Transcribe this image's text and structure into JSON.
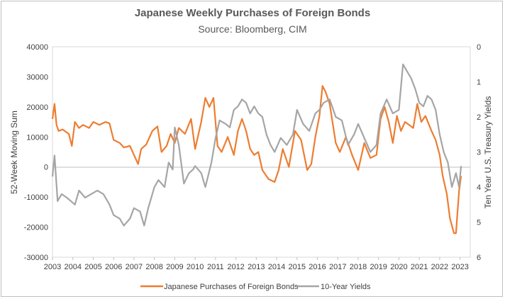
{
  "chart_data": {
    "type": "line",
    "title": "Japanese Weekly Purchases of Foreign Bonds",
    "subtitle": "Source: Bloomberg, CIM",
    "ylabel_left": "52-Week Moving Sum",
    "ylabel_right": "Ten Year U.S. Treasury Yields",
    "ylim_left": [
      -30000,
      40000
    ],
    "ylim_right": [
      6,
      0
    ],
    "right_axis_inverted": true,
    "xlim": [
      2003,
      2023.5
    ],
    "y_ticks_left": [
      "40000",
      "30000",
      "20000",
      "10000",
      "0",
      "-10000",
      "-20000",
      "-30000"
    ],
    "y_ticks_right": [
      "0",
      "1",
      "2",
      "3",
      "4",
      "5",
      "6"
    ],
    "x_ticks": [
      "2003",
      "2004",
      "2005",
      "2006",
      "2007",
      "2008",
      "2009",
      "2010",
      "2011",
      "2012",
      "2013",
      "2014",
      "2015",
      "2016",
      "2017",
      "2018",
      "2019",
      "2020",
      "2021",
      "2022",
      "2023"
    ],
    "grid": false,
    "legend_position": "bottom",
    "series": [
      {
        "name": "Japanese Purchases of Foreign Bonds",
        "axis": "left",
        "color": "#ED7D31",
        "x": [
          2003.0,
          2003.1,
          2003.2,
          2003.3,
          2003.5,
          2003.8,
          2003.95,
          2004.1,
          2004.3,
          2004.5,
          2004.8,
          2005.0,
          2005.3,
          2005.6,
          2005.8,
          2006.0,
          2006.3,
          2006.5,
          2006.8,
          2007.0,
          2007.2,
          2007.35,
          2007.6,
          2007.9,
          2008.15,
          2008.35,
          2008.6,
          2008.8,
          2009.0,
          2009.2,
          2009.5,
          2009.8,
          2010.0,
          2010.3,
          2010.5,
          2010.7,
          2010.9,
          2011.1,
          2011.3,
          2011.6,
          2011.9,
          2012.1,
          2012.3,
          2012.5,
          2012.7,
          2012.9,
          2013.1,
          2013.3,
          2013.6,
          2013.9,
          2014.1,
          2014.3,
          2014.6,
          2014.9,
          2015.2,
          2015.5,
          2015.7,
          2015.9,
          2016.1,
          2016.25,
          2016.4,
          2016.6,
          2016.9,
          2017.1,
          2017.4,
          2017.7,
          2018.0,
          2018.3,
          2018.6,
          2018.9,
          2019.1,
          2019.3,
          2019.5,
          2019.7,
          2019.9,
          2020.1,
          2020.3,
          2020.5,
          2020.7,
          2020.9,
          2021.1,
          2021.3,
          2021.6,
          2021.8,
          2022.0,
          2022.15,
          2022.35,
          2022.5,
          2022.7,
          2022.8,
          2022.95,
          2023.05
        ],
        "values": [
          16000,
          21000,
          14000,
          12000,
          12500,
          11000,
          7000,
          15000,
          13000,
          14000,
          13000,
          15000,
          14000,
          15000,
          14500,
          9000,
          8000,
          6500,
          7000,
          4000,
          1000,
          6000,
          7500,
          12000,
          13500,
          5000,
          7000,
          11000,
          8000,
          13000,
          11000,
          16000,
          6000,
          15000,
          23000,
          20000,
          23000,
          7000,
          5000,
          10000,
          4000,
          12000,
          16000,
          12000,
          6000,
          4000,
          5000,
          -1000,
          -4000,
          -5000,
          -1000,
          6000,
          0,
          12000,
          9000,
          -1000,
          1000,
          10000,
          17000,
          27000,
          25000,
          21000,
          8000,
          5000,
          10000,
          4000,
          -1000,
          8000,
          3000,
          4000,
          16000,
          20000,
          15000,
          8000,
          17000,
          12000,
          15000,
          14000,
          13000,
          21000,
          15000,
          17000,
          12000,
          9000,
          4000,
          -3000,
          -9000,
          -17000,
          -22000,
          -22000,
          -8000,
          -3000
        ]
      },
      {
        "name": "10-Year Yields",
        "axis": "right",
        "color": "#A5A5A5",
        "x": [
          2003.0,
          2003.1,
          2003.25,
          2003.45,
          2003.7,
          2003.9,
          2004.1,
          2004.3,
          2004.6,
          2004.9,
          2005.2,
          2005.5,
          2005.8,
          2006.0,
          2006.3,
          2006.5,
          2006.8,
          2007.0,
          2007.3,
          2007.5,
          2007.7,
          2008.0,
          2008.2,
          2008.5,
          2008.7,
          2008.9,
          2009.0,
          2009.2,
          2009.45,
          2009.7,
          2009.9,
          2010.0,
          2010.3,
          2010.5,
          2010.8,
          2011.0,
          2011.2,
          2011.5,
          2011.7,
          2011.9,
          2012.1,
          2012.3,
          2012.5,
          2012.7,
          2012.9,
          2013.1,
          2013.3,
          2013.5,
          2013.7,
          2013.9,
          2014.2,
          2014.5,
          2014.8,
          2015.0,
          2015.3,
          2015.6,
          2015.9,
          2016.1,
          2016.3,
          2016.6,
          2016.9,
          2017.2,
          2017.5,
          2017.8,
          2018.0,
          2018.3,
          2018.6,
          2018.9,
          2019.1,
          2019.4,
          2019.7,
          2020.0,
          2020.2,
          2020.4,
          2020.6,
          2020.8,
          2021.0,
          2021.2,
          2021.4,
          2021.6,
          2021.8,
          2022.0,
          2022.2,
          2022.4,
          2022.6,
          2022.8,
          2022.95,
          2023.05
        ],
        "values": [
          3.7,
          3.1,
          4.4,
          4.2,
          4.3,
          4.4,
          4.5,
          4.1,
          4.3,
          4.2,
          4.1,
          4.2,
          4.5,
          4.8,
          4.9,
          5.1,
          4.9,
          4.6,
          4.7,
          5.1,
          4.6,
          4.0,
          3.8,
          4.0,
          3.3,
          3.5,
          2.3,
          2.8,
          3.9,
          3.6,
          3.5,
          3.4,
          3.6,
          4.0,
          3.3,
          2.6,
          2.1,
          2.2,
          2.3,
          1.8,
          1.7,
          1.5,
          1.6,
          1.9,
          1.7,
          1.9,
          2.0,
          2.5,
          2.8,
          3.0,
          2.6,
          2.8,
          2.5,
          1.8,
          2.2,
          2.4,
          1.9,
          1.8,
          1.6,
          1.5,
          2.0,
          2.1,
          2.8,
          2.5,
          2.2,
          2.6,
          3.0,
          2.8,
          1.9,
          1.5,
          1.9,
          1.8,
          0.5,
          0.7,
          0.9,
          1.2,
          1.6,
          1.7,
          1.4,
          1.5,
          1.8,
          2.5,
          3.0,
          3.3,
          4.0,
          3.6,
          4.0,
          3.4
        ]
      }
    ]
  }
}
